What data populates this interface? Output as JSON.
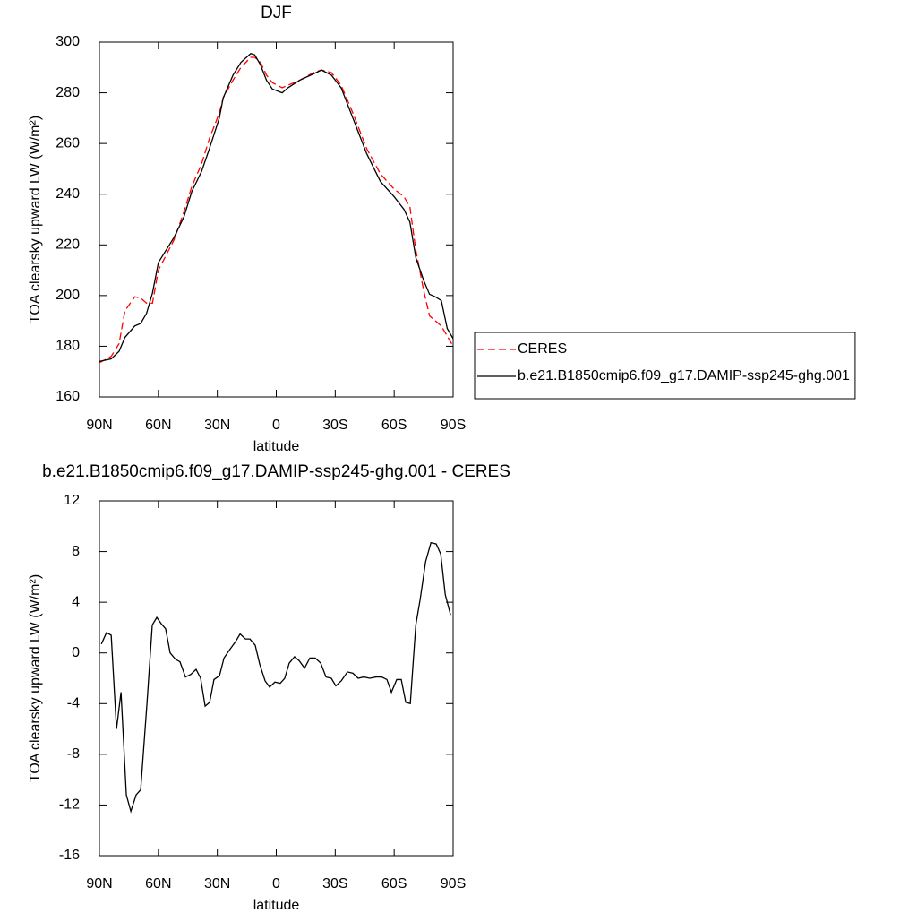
{
  "chart_data": [
    {
      "type": "line",
      "title": "DJF",
      "x_label": "latitude",
      "y_label": "TOA clearsky upward LW (W/m²)",
      "x": [
        90,
        84,
        80,
        77,
        72,
        69,
        66,
        63,
        60,
        56,
        52,
        47,
        43,
        38,
        34,
        29,
        27,
        22,
        18,
        13,
        11,
        8,
        5,
        2,
        -3,
        -6,
        -12,
        -19,
        -23,
        -28,
        -33,
        -39,
        -46,
        -53,
        -60,
        -65,
        -68,
        -71,
        -75,
        -78,
        -81,
        -84,
        -87,
        -90
      ],
      "series": [
        {
          "name": "CERES",
          "color": "#ff0000",
          "linestyle": "dashed",
          "values": [
            173.5,
            176,
            181,
            194,
            199.5,
            199,
            197,
            197,
            210,
            216,
            222,
            233,
            243,
            252,
            262,
            272,
            278,
            285,
            290,
            294,
            294,
            292,
            287,
            284,
            282,
            283,
            285,
            288,
            289,
            288,
            283,
            272,
            258,
            248,
            242,
            239,
            235,
            218,
            202,
            192,
            190,
            188,
            184,
            180
          ]
        },
        {
          "name": "b.e21.B1850cmip6.f09_g17.DAMIP-ssp245-ghg.001",
          "color": "#000000",
          "linestyle": "solid",
          "values": [
            174,
            175,
            178,
            183.5,
            188,
            189,
            193,
            201,
            213,
            218,
            223,
            231,
            241,
            249,
            258,
            270,
            278,
            287,
            292,
            295.5,
            295,
            291,
            285,
            281.5,
            280,
            282,
            285,
            287.5,
            289,
            287,
            282,
            270,
            256,
            245,
            239,
            234,
            229,
            215,
            206,
            200.5,
            199.5,
            198,
            187,
            183
          ]
        }
      ],
      "xlim": [
        90,
        -90
      ],
      "xticks": [
        {
          "value": 90,
          "label": "90N"
        },
        {
          "value": 60,
          "label": "60N"
        },
        {
          "value": 30,
          "label": "30N"
        },
        0,
        {
          "value": -30,
          "label": "30S"
        },
        {
          "value": -60,
          "label": "60S"
        },
        {
          "value": -90,
          "label": "90S"
        }
      ],
      "ylim": [
        160,
        300
      ],
      "yticks": [
        160,
        180,
        200,
        220,
        240,
        260,
        280,
        300
      ],
      "legend": "right"
    },
    {
      "type": "line",
      "title": "b.e21.B1850cmip6.f09_g17.DAMIP-ssp245-ghg.001 - CERES",
      "x_label": "latitude",
      "y_label": "TOA clearsky upward LW (W/m²)",
      "x": [
        89,
        86.4,
        84,
        81.3,
        79,
        76.3,
        74,
        71.3,
        69,
        65.8,
        63.1,
        60.8,
        58.5,
        56.3,
        54,
        51.3,
        49,
        46.2,
        43.5,
        40.8,
        38.5,
        36.2,
        33.9,
        31.7,
        28.9,
        26.6,
        23.5,
        20.7,
        18.4,
        15.7,
        13.4,
        10.7,
        8.4,
        5.7,
        3.4,
        0.7,
        -2,
        -4.3,
        -6.6,
        -9.3,
        -11.6,
        -14.4,
        -17.1,
        -19.8,
        -22.6,
        -25.3,
        -28,
        -30.3,
        -33.1,
        -36.2,
        -39,
        -41.7,
        -44.5,
        -47.6,
        -50.8,
        -53.6,
        -56.3,
        -58.6,
        -61.3,
        -63.6,
        -65.9,
        -68.2,
        -71,
        -73.2,
        -76,
        -78.7,
        -81.4,
        -83.7,
        -86,
        -88.7
      ],
      "series": [
        {
          "color": "#000000",
          "linestyle": "solid",
          "values": [
            0.7,
            1.6,
            1.4,
            -6.0,
            -3.1,
            -11.2,
            -12.5,
            -11.2,
            -10.8,
            -4,
            2.2,
            2.8,
            2.3,
            1.9,
            0,
            -0.5,
            -0.7,
            -1.9,
            -1.7,
            -1.3,
            -2,
            -4.2,
            -3.9,
            -2.1,
            -1.8,
            -0.4,
            0.3,
            0.9,
            1.5,
            1.1,
            1.1,
            0.6,
            -0.9,
            -2.2,
            -2.7,
            -2.3,
            -2.4,
            -2.0,
            -0.8,
            -0.3,
            -0.6,
            -1.2,
            -0.4,
            -0.4,
            -0.8,
            -1.9,
            -2.0,
            -2.6,
            -2.2,
            -1.5,
            -1.6,
            -2.0,
            -1.9,
            -2.0,
            -1.9,
            -1.9,
            -2.1,
            -3.1,
            -2.1,
            -2.1,
            -3.9,
            -4.0,
            2.2,
            4.2,
            7.2,
            8.7,
            8.6,
            7.8,
            4.6,
            3.0
          ]
        }
      ],
      "xlim": [
        90,
        -90
      ],
      "xticks": [
        {
          "value": 90,
          "label": "90N"
        },
        {
          "value": 60,
          "label": "60N"
        },
        {
          "value": 30,
          "label": "30N"
        },
        0,
        {
          "value": -30,
          "label": "30S"
        },
        {
          "value": -60,
          "label": "60S"
        },
        {
          "value": -90,
          "label": "90S"
        }
      ],
      "ylim": [
        -16,
        12
      ],
      "yticks": [
        -16,
        -12,
        -8,
        -4,
        0,
        4,
        8,
        12
      ]
    }
  ]
}
